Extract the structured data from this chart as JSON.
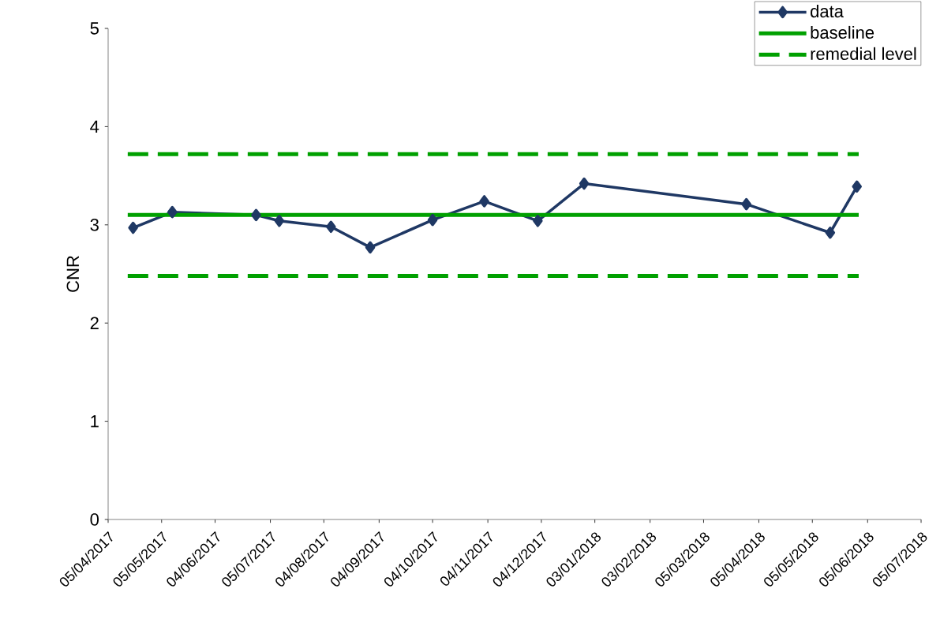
{
  "chart_data": {
    "type": "line",
    "ylabel": "CNR",
    "xlim": [
      "2017-04-05",
      "2018-07-05"
    ],
    "ylim": [
      0,
      5
    ],
    "yticks": [
      0,
      1,
      2,
      3,
      4,
      5
    ],
    "xticks": [
      {
        "value": "2017-04-05",
        "label": "05/04/2017"
      },
      {
        "value": "2017-05-05",
        "label": "05/05/2017"
      },
      {
        "value": "2017-06-04",
        "label": "04/06/2017"
      },
      {
        "value": "2017-07-05",
        "label": "05/07/2017"
      },
      {
        "value": "2017-08-04",
        "label": "04/08/2017"
      },
      {
        "value": "2017-09-04",
        "label": "04/09/2017"
      },
      {
        "value": "2017-10-04",
        "label": "04/10/2017"
      },
      {
        "value": "2017-11-04",
        "label": "04/11/2017"
      },
      {
        "value": "2017-12-04",
        "label": "04/12/2017"
      },
      {
        "value": "2018-01-03",
        "label": "03/01/2018"
      },
      {
        "value": "2018-02-03",
        "label": "03/02/2018"
      },
      {
        "value": "2018-03-05",
        "label": "05/03/2018"
      },
      {
        "value": "2018-04-05",
        "label": "05/04/2018"
      },
      {
        "value": "2018-05-05",
        "label": "05/05/2018"
      },
      {
        "value": "2018-06-05",
        "label": "05/06/2018"
      },
      {
        "value": "2018-07-05",
        "label": "05/07/2018"
      }
    ],
    "legend": "top right",
    "grid": false,
    "series": [
      {
        "name": "data",
        "color": "#1f3864",
        "marker": "diamond",
        "line_style": "solid",
        "x": [
          "2017-04-19",
          "2017-05-11",
          "2017-06-27",
          "2017-07-10",
          "2017-08-08",
          "2017-08-30",
          "2017-10-04",
          "2017-11-02",
          "2017-12-02",
          "2017-12-28",
          "2018-03-29",
          "2018-05-15",
          "2018-05-30"
        ],
        "values": [
          2.97,
          3.13,
          3.1,
          3.04,
          2.98,
          2.77,
          3.05,
          3.24,
          3.04,
          3.42,
          3.21,
          2.92,
          3.39
        ]
      },
      {
        "name": "baseline",
        "color": "#00a000",
        "marker": "none",
        "line_style": "solid",
        "x": [
          "2017-04-16",
          "2018-05-31"
        ],
        "values": [
          3.1,
          3.1
        ]
      },
      {
        "name": "remedial level",
        "color": "#00a000",
        "marker": "none",
        "line_style": "dashed",
        "x": [
          "2017-04-16",
          "2018-05-31"
        ],
        "values": [
          3.72,
          3.72
        ]
      },
      {
        "color": "#00a000",
        "marker": "none",
        "line_style": "dashed",
        "x": [
          "2017-04-16",
          "2018-05-31"
        ],
        "values": [
          2.48,
          2.48
        ]
      }
    ]
  }
}
